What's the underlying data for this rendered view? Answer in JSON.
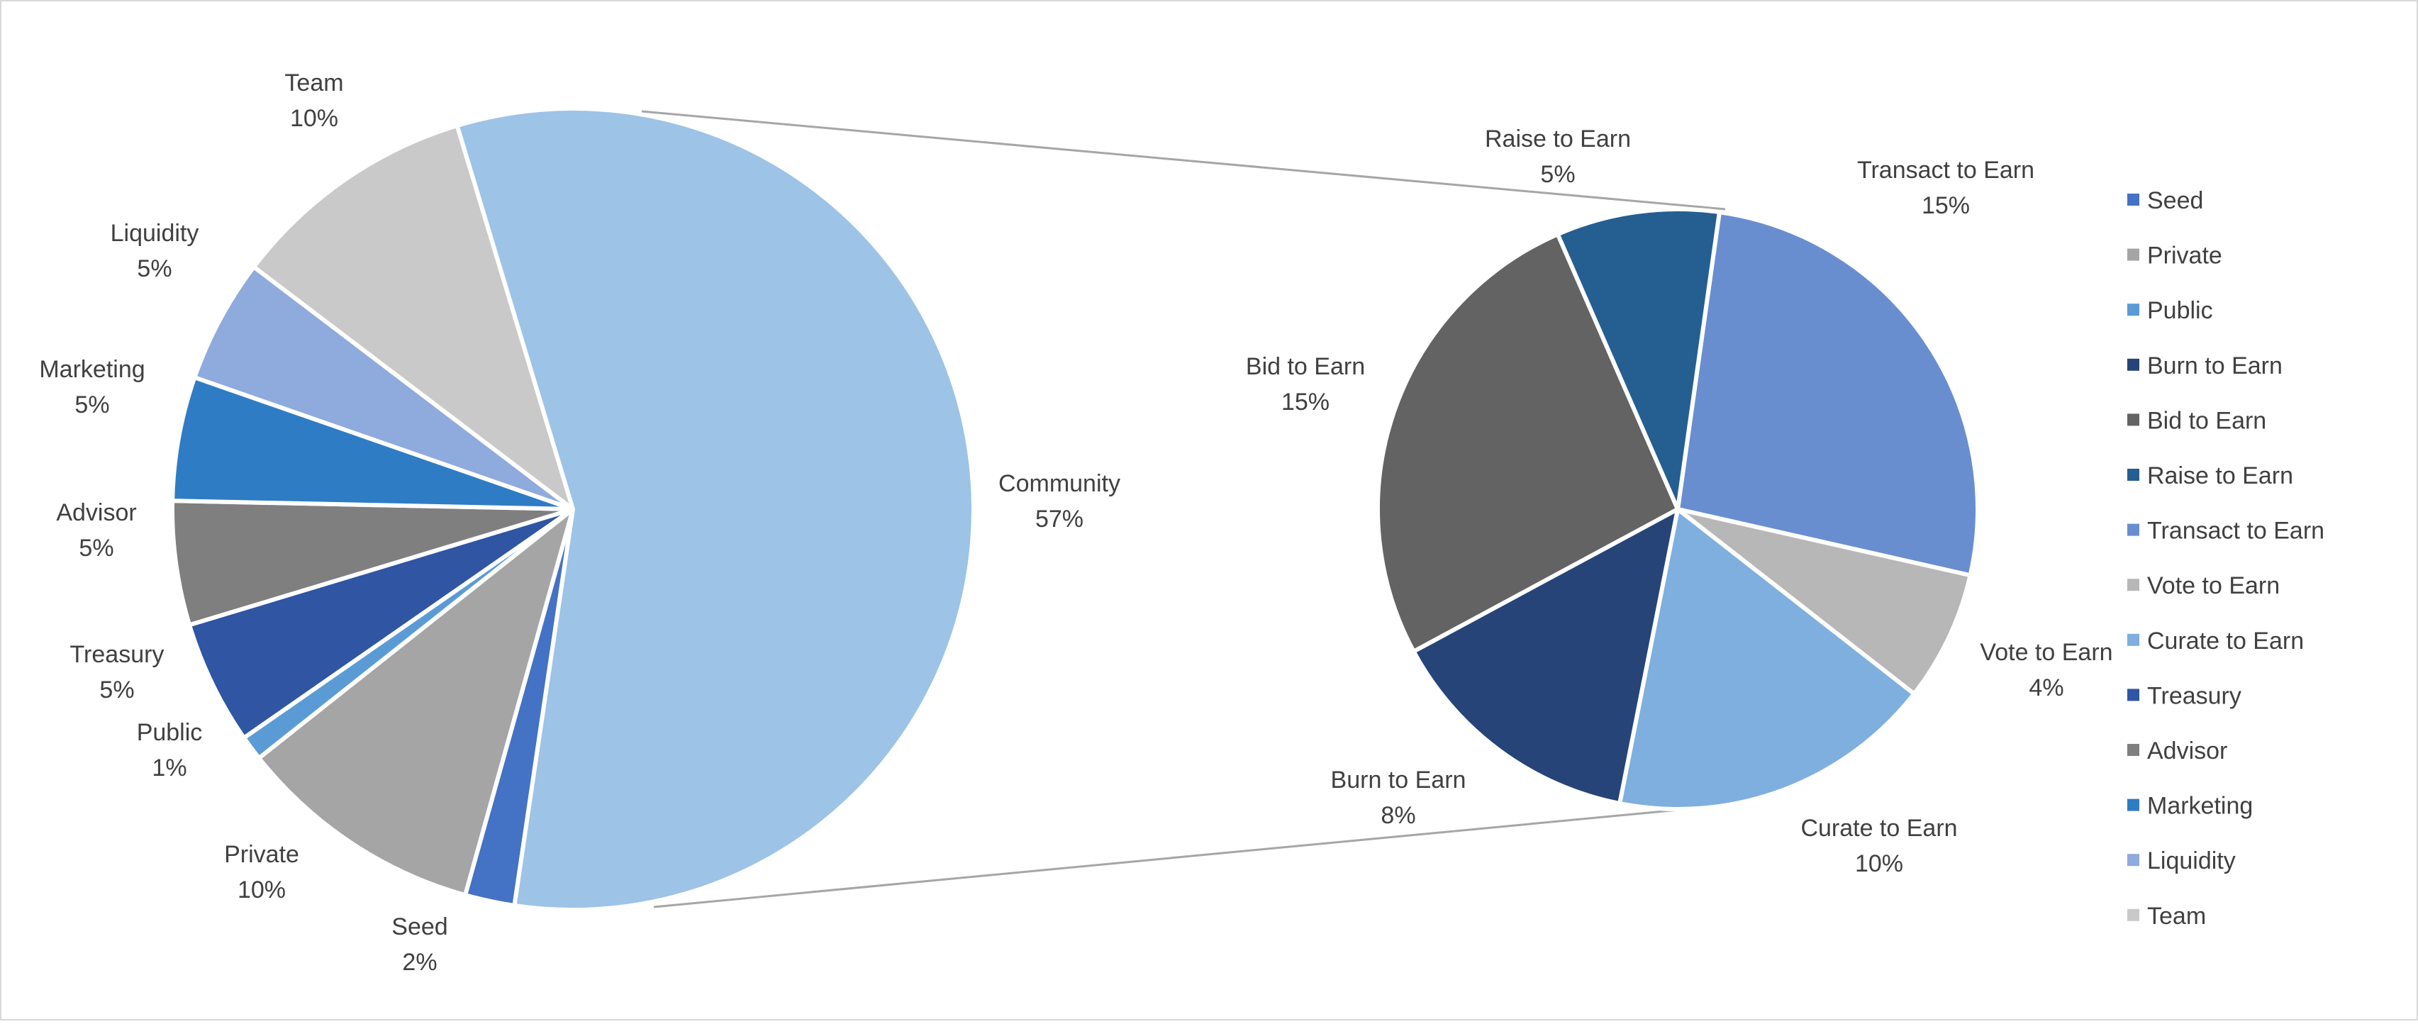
{
  "chart_data": {
    "type": "pie",
    "subtype": "pie-of-pie",
    "main_pie": {
      "series": [
        {
          "name": "Seed",
          "label": "Seed",
          "percent_label": "2%",
          "value": 2,
          "color": "#4472C4"
        },
        {
          "name": "Private",
          "label": "Private",
          "percent_label": "10%",
          "value": 10,
          "color": "#A5A5A5"
        },
        {
          "name": "Public",
          "label": "Public",
          "percent_label": "1%",
          "value": 1,
          "color": "#5B9BD5"
        },
        {
          "name": "Treasury",
          "label": "Treasury",
          "percent_label": "5%",
          "value": 5,
          "color": "#2F55A3"
        },
        {
          "name": "Advisor",
          "label": "Advisor",
          "percent_label": "5%",
          "value": 5,
          "color": "#7F7F7F"
        },
        {
          "name": "Marketing",
          "label": "Marketing",
          "percent_label": "5%",
          "value": 5,
          "color": "#2E7CC4"
        },
        {
          "name": "Liquidity",
          "label": "Liquidity",
          "percent_label": "5%",
          "value": 5,
          "color": "#8FAADC"
        },
        {
          "name": "Team",
          "label": "Team",
          "percent_label": "10%",
          "value": 10,
          "color": "#C9C9C9"
        },
        {
          "name": "Community",
          "label": "Community",
          "percent_label": "57%",
          "value": 57,
          "color": "#9DC3E6"
        }
      ]
    },
    "secondary_pie": {
      "breaks_out": "Community",
      "series": [
        {
          "name": "Transact to Earn",
          "label": "Transact to Earn",
          "percent_label": "15%",
          "value": 15,
          "color": "#698ED0"
        },
        {
          "name": "Vote to Earn",
          "label": "Vote to Earn",
          "percent_label": "4%",
          "value": 4,
          "color": "#B7B7B7"
        },
        {
          "name": "Curate to Earn",
          "label": "Curate to Earn",
          "percent_label": "10%",
          "value": 10,
          "color": "#7EAFDE"
        },
        {
          "name": "Burn to Earn",
          "label": "Burn to Earn",
          "percent_label": "8%",
          "value": 8,
          "color": "#264478"
        },
        {
          "name": "Bid to Earn",
          "label": "Bid to Earn",
          "percent_label": "15%",
          "value": 15,
          "color": "#636363"
        },
        {
          "name": "Raise to Earn",
          "label": "Raise to Earn",
          "percent_label": "5%",
          "value": 5,
          "color": "#255E91"
        }
      ]
    },
    "legend": {
      "position": "right",
      "items": [
        {
          "label": "Seed",
          "color": "#4472C4"
        },
        {
          "label": "Private",
          "color": "#A5A5A5"
        },
        {
          "label": "Public",
          "color": "#5B9BD5"
        },
        {
          "label": "Burn to Earn",
          "color": "#264478"
        },
        {
          "label": "Bid to Earn",
          "color": "#636363"
        },
        {
          "label": "Raise to Earn",
          "color": "#255E91"
        },
        {
          "label": "Transact to Earn",
          "color": "#698ED0"
        },
        {
          "label": "Vote to Earn",
          "color": "#B7B7B7"
        },
        {
          "label": "Curate to Earn",
          "color": "#7EAFDE"
        },
        {
          "label": "Treasury",
          "color": "#2F55A3"
        },
        {
          "label": "Advisor",
          "color": "#7F7F7F"
        },
        {
          "label": "Marketing",
          "color": "#2E7CC4"
        },
        {
          "label": "Liquidity",
          "color": "#8FAADC"
        },
        {
          "label": "Team",
          "color": "#C9C9C9"
        }
      ]
    }
  }
}
